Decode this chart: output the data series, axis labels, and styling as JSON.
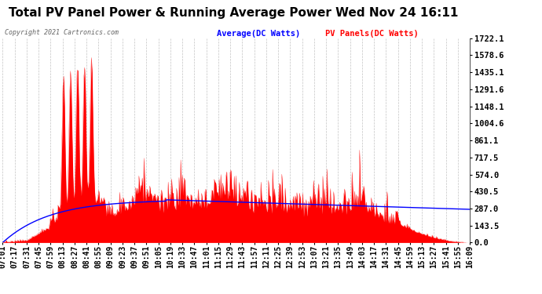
{
  "title": "Total PV Panel Power & Running Average Power Wed Nov 24 16:11",
  "copyright": "Copyright 2021 Cartronics.com",
  "legend_avg": "Average(DC Watts)",
  "legend_pv": "PV Panels(DC Watts)",
  "ylabel_values": [
    0.0,
    143.5,
    287.0,
    430.5,
    574.0,
    717.5,
    861.1,
    1004.6,
    1148.1,
    1291.6,
    1435.1,
    1578.6,
    1722.1
  ],
  "ymax": 1722.1,
  "ymin": 0.0,
  "background_color": "#ffffff",
  "plot_bg_color": "#ffffff",
  "grid_color": "#aaaaaa",
  "pv_fill_color": "#ff0000",
  "avg_line_color": "#0000ff",
  "title_fontsize": 11,
  "tick_fontsize": 7,
  "x_tick_labels": [
    "07:01",
    "07:17",
    "07:31",
    "07:45",
    "07:59",
    "08:13",
    "08:27",
    "08:41",
    "08:55",
    "09:09",
    "09:23",
    "09:37",
    "09:51",
    "10:05",
    "10:19",
    "10:33",
    "10:47",
    "11:01",
    "11:15",
    "11:29",
    "11:43",
    "11:57",
    "12:11",
    "12:25",
    "12:39",
    "12:53",
    "13:07",
    "13:21",
    "13:35",
    "13:49",
    "14:03",
    "14:17",
    "14:31",
    "14:45",
    "14:59",
    "15:13",
    "15:27",
    "15:41",
    "15:55",
    "16:09"
  ]
}
